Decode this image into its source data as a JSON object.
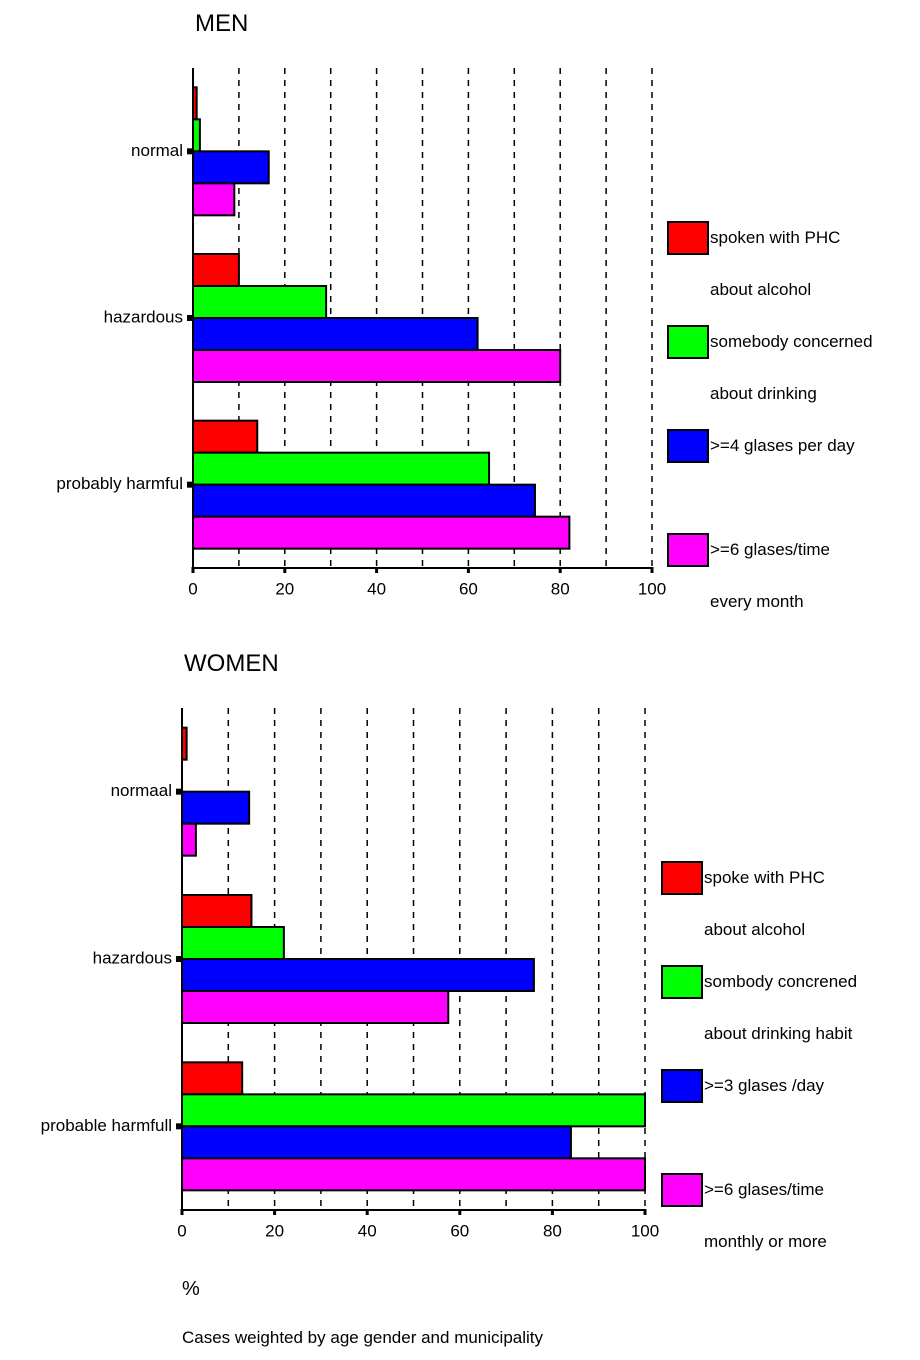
{
  "chart_data": [
    {
      "type": "bar",
      "orientation": "horizontal",
      "title": "MEN",
      "categories": [
        "normal",
        "hazardous",
        "probably harmful"
      ],
      "series": [
        {
          "name": "spoken with PHC\nabout alcohol",
          "color": "#ff0000",
          "values": [
            0.8,
            10,
            14
          ]
        },
        {
          "name": "somebody concerned\nabout drinking",
          "color": "#00ff00",
          "values": [
            1.5,
            29,
            64.5
          ]
        },
        {
          "name": ">=4 glases per day",
          "color": "#0000ff",
          "values": [
            16.5,
            62,
            74.5
          ]
        },
        {
          "name": ">=6 glases/time\nevery month",
          "color": "#ff00ff",
          "values": [
            9,
            80,
            82
          ]
        }
      ],
      "xlim": [
        0,
        100
      ],
      "xticks": [
        0,
        20,
        40,
        60,
        80,
        100
      ],
      "xgrid": [
        10,
        20,
        30,
        40,
        50,
        60,
        70,
        80,
        90,
        100
      ],
      "grid": true,
      "legend": "right"
    },
    {
      "type": "bar",
      "orientation": "horizontal",
      "title": "WOMEN",
      "categories": [
        "normaal",
        "hazardous",
        "probable harmfull"
      ],
      "series": [
        {
          "name": "spoke with PHC\nabout alcohol",
          "color": "#ff0000",
          "values": [
            1,
            15,
            13
          ]
        },
        {
          "name": "sombody concrened\nabout drinking habit",
          "color": "#00ff00",
          "values": [
            null,
            22,
            100
          ]
        },
        {
          "name": ">=3 glases /day",
          "color": "#0000ff",
          "values": [
            14.5,
            76,
            84
          ]
        },
        {
          "name": ">=6 glases/time\nmonthly or more",
          "color": "#ff00ff",
          "values": [
            3,
            57.5,
            100
          ]
        }
      ],
      "xlim": [
        0,
        100
      ],
      "xticks": [
        0,
        20,
        40,
        60,
        80,
        100
      ],
      "xgrid": [
        10,
        20,
        30,
        40,
        50,
        60,
        70,
        80,
        90,
        100
      ],
      "grid": true,
      "legend": "right"
    }
  ],
  "footer": {
    "unit": "%",
    "note": "Cases weighted by age gender and municipality"
  }
}
